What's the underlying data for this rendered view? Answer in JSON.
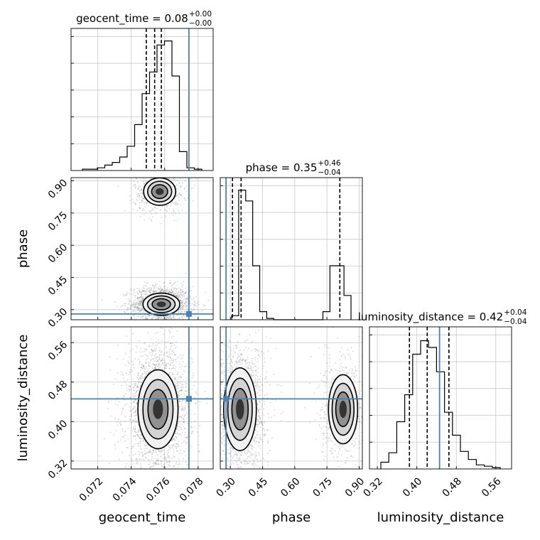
{
  "chart_data": {
    "type": "corner",
    "parameters": [
      "geocent_time",
      "phase",
      "luminosity_distance"
    ],
    "truths": {
      "geocent_time": 0.07745,
      "phase": 0.28,
      "luminosity_distance": 0.446
    },
    "ranges": {
      "geocent_time": [
        0.0704,
        0.0789
      ],
      "phase": [
        0.253,
        0.915
      ],
      "luminosity_distance": [
        0.304,
        0.592
      ]
    },
    "ticks": {
      "geocent_time": [
        "0.072",
        "0.074",
        "0.076",
        "0.078"
      ],
      "phase": [
        "0.30",
        "0.45",
        "0.60",
        "0.75",
        "0.90"
      ],
      "luminosity_distance": [
        "0.32",
        "0.40",
        "0.48",
        "0.56"
      ]
    },
    "tick_values": {
      "geocent_time": [
        0.072,
        0.074,
        0.076,
        0.078
      ],
      "phase": [
        0.3,
        0.45,
        0.6,
        0.75,
        0.9
      ],
      "luminosity_distance": [
        0.32,
        0.4,
        0.48,
        0.56
      ]
    },
    "titles": {
      "geocent_time": {
        "label": "geocent_time = 0.08",
        "plus": "+0.00",
        "minus": "−0.00"
      },
      "phase": {
        "label": "phase = 0.35",
        "plus": "+0.46",
        "minus": "−0.04"
      },
      "luminosity_distance": {
        "label": "luminosity_distance = 0.42",
        "plus": "+0.04",
        "minus": "−0.04"
      }
    },
    "quantiles": {
      "geocent_time": [
        0.0749,
        0.0754,
        0.0758
      ],
      "phase": [
        0.31,
        0.35,
        0.81
      ],
      "luminosity_distance": [
        0.385,
        0.421,
        0.465
      ]
    },
    "histograms": {
      "geocent_time": [
        0.01,
        0.01,
        0.02,
        0.04,
        0.06,
        0.1,
        0.18,
        0.34,
        0.57,
        0.73,
        0.93,
        0.96,
        0.7,
        0.14,
        0.02,
        0.01
      ],
      "phase": [
        0.03,
        0.96,
        0.88,
        0.4,
        0.06,
        0.01,
        0.0,
        0.0,
        0.0,
        0.0,
        0.0,
        0.0,
        0.0,
        0.06,
        0.4,
        0.4,
        0.18
      ],
      "luminosity_distance": [
        0.05,
        0.12,
        0.35,
        0.55,
        0.85,
        0.95,
        0.9,
        0.72,
        0.42,
        0.25,
        0.13,
        0.07,
        0.03,
        0.02,
        0.01
      ]
    },
    "clusters": {
      "phase_vs_geocent_time": [
        {
          "mx": 0.0758,
          "my": 0.325,
          "sx": 0.00055,
          "sy": 0.026,
          "w": 0.74
        },
        {
          "mx": 0.0757,
          "my": 0.85,
          "sx": 0.00048,
          "sy": 0.032,
          "w": 0.26
        }
      ],
      "luminosity_distance_vs_geocent_time": [
        {
          "mx": 0.0756,
          "my": 0.425,
          "sx": 0.0006,
          "sy": 0.04,
          "w": 1.0
        }
      ],
      "luminosity_distance_vs_phase": [
        {
          "mx": 0.345,
          "my": 0.425,
          "sx": 0.038,
          "sy": 0.042,
          "w": 0.72
        },
        {
          "mx": 0.825,
          "my": 0.425,
          "sx": 0.034,
          "sy": 0.035,
          "w": 0.28
        }
      ]
    },
    "grid": true
  }
}
